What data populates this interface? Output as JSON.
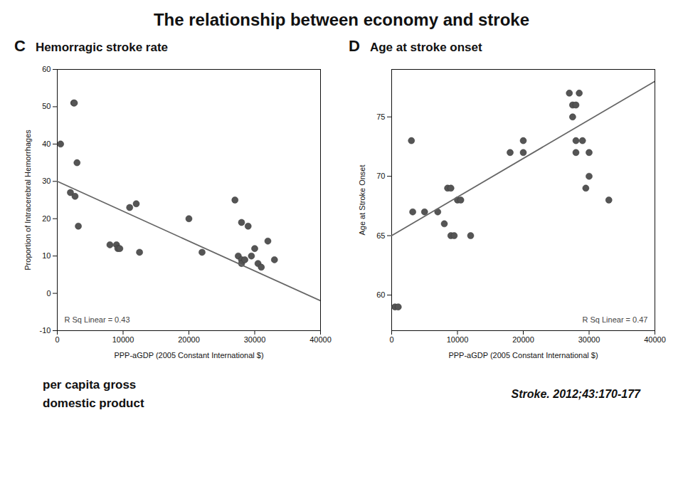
{
  "title": "The relationship between economy and stroke",
  "annotations": [
    "per capita gross",
    "domestic product",
    "Stroke. 2012;43:170-177"
  ],
  "chart_data": [
    {
      "type": "scatter",
      "title": "Hemorragic stroke rate",
      "annotations": [
        "C",
        "R Sq Linear = 0.43"
      ],
      "x_label": "PPP-aGDP (2005 Constant International $)",
      "y_label": "Proportion of Intracerebral Hemorrhages",
      "xlim": [
        0,
        40000
      ],
      "xticks": [
        0,
        10000,
        20000,
        30000,
        40000
      ],
      "ylim": [
        -10,
        60
      ],
      "yticks": [
        -10,
        0,
        10,
        20,
        30,
        40,
        50,
        60
      ],
      "grid": false,
      "series": [
        {
          "type": "scatter",
          "marker": "circle",
          "color": "#555555",
          "x": [
            500,
            2000,
            2500,
            2600,
            2700,
            3000,
            3200,
            8000,
            9000,
            9200,
            9500,
            11000,
            12000,
            12500,
            20000,
            22000,
            27000,
            27500,
            28000,
            28000,
            28000,
            28500,
            29000,
            29500,
            30000,
            30500,
            31000,
            32000,
            33000
          ],
          "values": [
            40,
            27,
            51,
            51,
            26,
            35,
            18,
            13,
            13,
            12,
            12,
            23,
            24,
            11,
            20,
            11,
            25,
            10,
            19,
            9,
            8,
            9,
            18,
            10,
            12,
            8,
            7,
            14,
            9
          ]
        },
        {
          "type": "line",
          "line_style": "solid",
          "color": "#666666",
          "x": [
            0,
            40000
          ],
          "values": [
            30,
            -2
          ]
        }
      ]
    },
    {
      "type": "scatter",
      "title": "Age at stroke onset",
      "annotations": [
        "D",
        "R Sq Linear = 0.47"
      ],
      "x_label": "PPP-aGDP (2005 Constant International $)",
      "y_label": "Age at Stroke Onset",
      "xlim": [
        0,
        40000
      ],
      "xticks": [
        0,
        10000,
        20000,
        30000,
        40000
      ],
      "ylim": [
        57,
        79
      ],
      "yticks": [
        60,
        65,
        70,
        75
      ],
      "grid": false,
      "series": [
        {
          "type": "scatter",
          "marker": "circle",
          "color": "#555555",
          "x": [
            500,
            1000,
            3000,
            3200,
            5000,
            7000,
            8000,
            8500,
            9000,
            9000,
            9500,
            10000,
            10500,
            12000,
            18000,
            20000,
            20000,
            27000,
            27500,
            27500,
            28000,
            28000,
            28000,
            28500,
            29000,
            29500,
            30000,
            30000,
            33000
          ],
          "values": [
            59,
            59,
            73,
            67,
            67,
            67,
            66,
            69,
            69,
            65,
            65,
            68,
            68,
            65,
            72,
            72,
            73,
            77,
            76,
            75,
            73,
            72,
            76,
            77,
            73,
            69,
            70,
            72,
            68
          ]
        },
        {
          "type": "line",
          "line_style": "solid",
          "color": "#666666",
          "x": [
            0,
            40000
          ],
          "values": [
            65,
            78
          ]
        }
      ]
    }
  ]
}
